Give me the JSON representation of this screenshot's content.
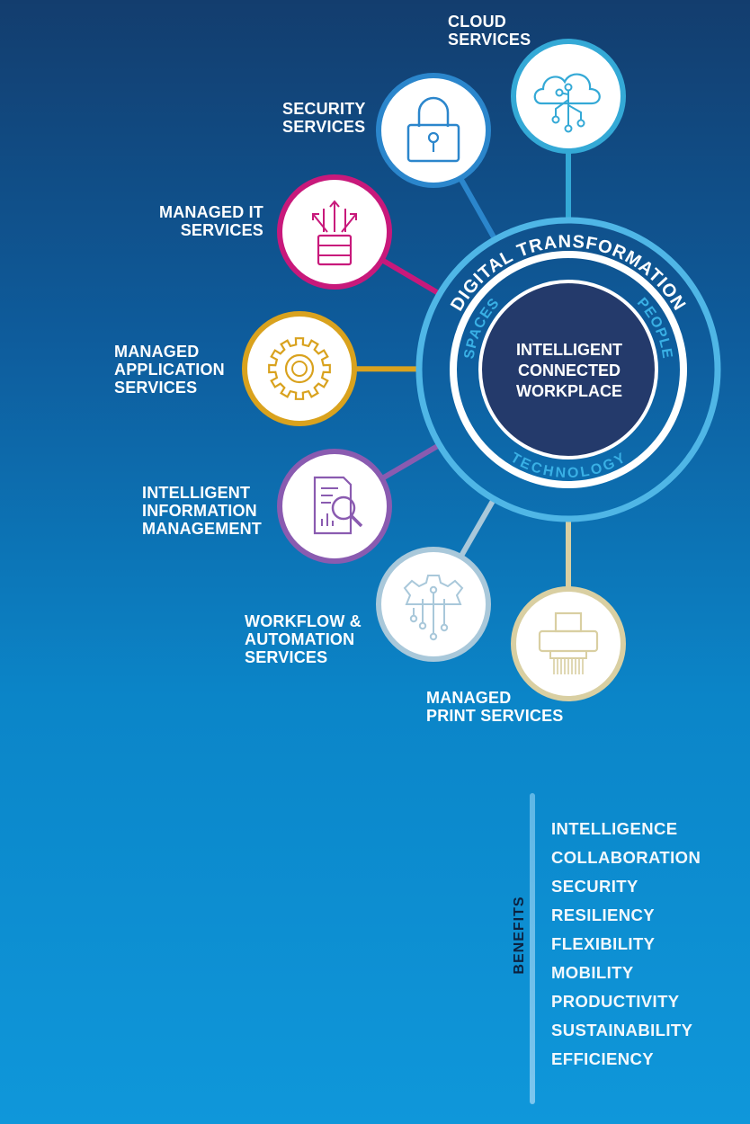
{
  "center": {
    "title_lines": [
      "INTELLIGENT",
      "CONNECTED",
      "WORKPLACE"
    ],
    "outer_ring_text": "DIGITAL TRANSFORMATION",
    "inner_ring": {
      "left": "SPACES",
      "right": "PEOPLE",
      "bottom": "TECHNOLOGY"
    }
  },
  "services": [
    {
      "id": "cloud",
      "lines": [
        "CLOUD",
        "SERVICES"
      ],
      "icon": "cloud-network-icon",
      "color": "#34a9d6"
    },
    {
      "id": "security",
      "lines": [
        "SECURITY",
        "SERVICES"
      ],
      "icon": "padlock-icon",
      "color": "#2b86cc"
    },
    {
      "id": "managed-it",
      "lines": [
        "MANAGED IT",
        "SERVICES"
      ],
      "icon": "server-arrows-icon",
      "color": "#c8197b"
    },
    {
      "id": "managed-application",
      "lines": [
        "MANAGED",
        "APPLICATION",
        "SERVICES"
      ],
      "icon": "gear-icon",
      "color": "#d9a21e"
    },
    {
      "id": "intelligent-information",
      "lines": [
        "INTELLIGENT",
        "INFORMATION",
        "MANAGEMENT"
      ],
      "icon": "document-search-icon",
      "color": "#8a5bb0"
    },
    {
      "id": "workflow-automation",
      "lines": [
        "WORKFLOW &",
        "AUTOMATION",
        "SERVICES"
      ],
      "icon": "gear-circuit-icon",
      "color": "#a9c8da"
    },
    {
      "id": "managed-print",
      "lines": [
        "MANAGED",
        "PRINT SERVICES"
      ],
      "icon": "printer-icon",
      "color": "#d9cfa2"
    }
  ],
  "benefits": {
    "title": "BENEFITS",
    "items": [
      "INTELLIGENCE",
      "COLLABORATION",
      "SECURITY",
      "RESILIENCY",
      "FLEXIBILITY",
      "MOBILITY",
      "PRODUCTIVITY",
      "SUSTAINABILITY",
      "EFFICIENCY"
    ]
  },
  "colors": {
    "center_fill": "#243a6b",
    "ring_light": "#4fb6e6",
    "ring_white": "#ffffff",
    "ring_text_light": "#39b0e5"
  }
}
